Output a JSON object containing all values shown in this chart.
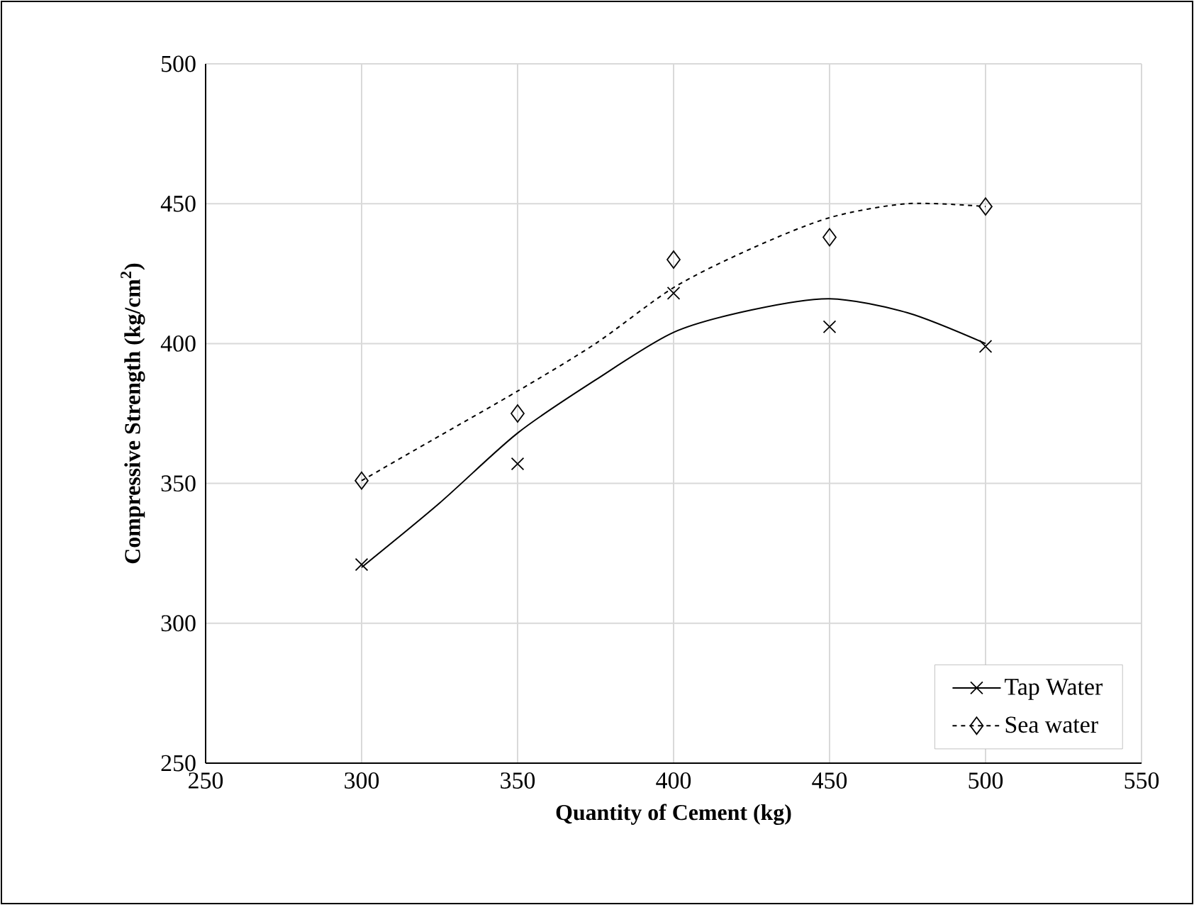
{
  "chart_data": {
    "type": "scatter",
    "xlabel": "Quantity of Cement (kg)",
    "ylabel": "Compressive Strength (kg/cm$^{2}$)",
    "xlim": [
      250,
      550
    ],
    "xticks": [
      250,
      300,
      350,
      400,
      450,
      500,
      550
    ],
    "ylim": [
      250,
      500
    ],
    "yticks": [
      250,
      300,
      350,
      400,
      450,
      500
    ],
    "grid": true,
    "legend": "bottom right",
    "series": [
      {
        "name": "Tap Water",
        "marker": "cross",
        "color": "#000000",
        "x": [
          300,
          350,
          400,
          450,
          500
        ],
        "values": [
          321,
          357,
          418,
          406,
          399
        ]
      },
      {
        "name": "Sea water",
        "marker": "diamond",
        "color": "#000000",
        "x": [
          300,
          350,
          400,
          450,
          500
        ],
        "values": [
          351,
          375,
          430,
          438,
          449
        ]
      },
      {
        "type": "line",
        "line_style": "solid",
        "color": "#000000",
        "x": [
          300,
          325,
          350,
          375,
          400,
          425,
          450,
          475,
          500
        ],
        "values": [
          320,
          343,
          368,
          387,
          404,
          412,
          416,
          411,
          400
        ]
      },
      {
        "type": "line",
        "line_style": "dashed",
        "color": "#000000",
        "x": [
          300,
          325,
          350,
          375,
          400,
          425,
          450,
          475,
          500
        ],
        "values": [
          351,
          367,
          383,
          400,
          420,
          434,
          445,
          450,
          449
        ]
      }
    ]
  }
}
